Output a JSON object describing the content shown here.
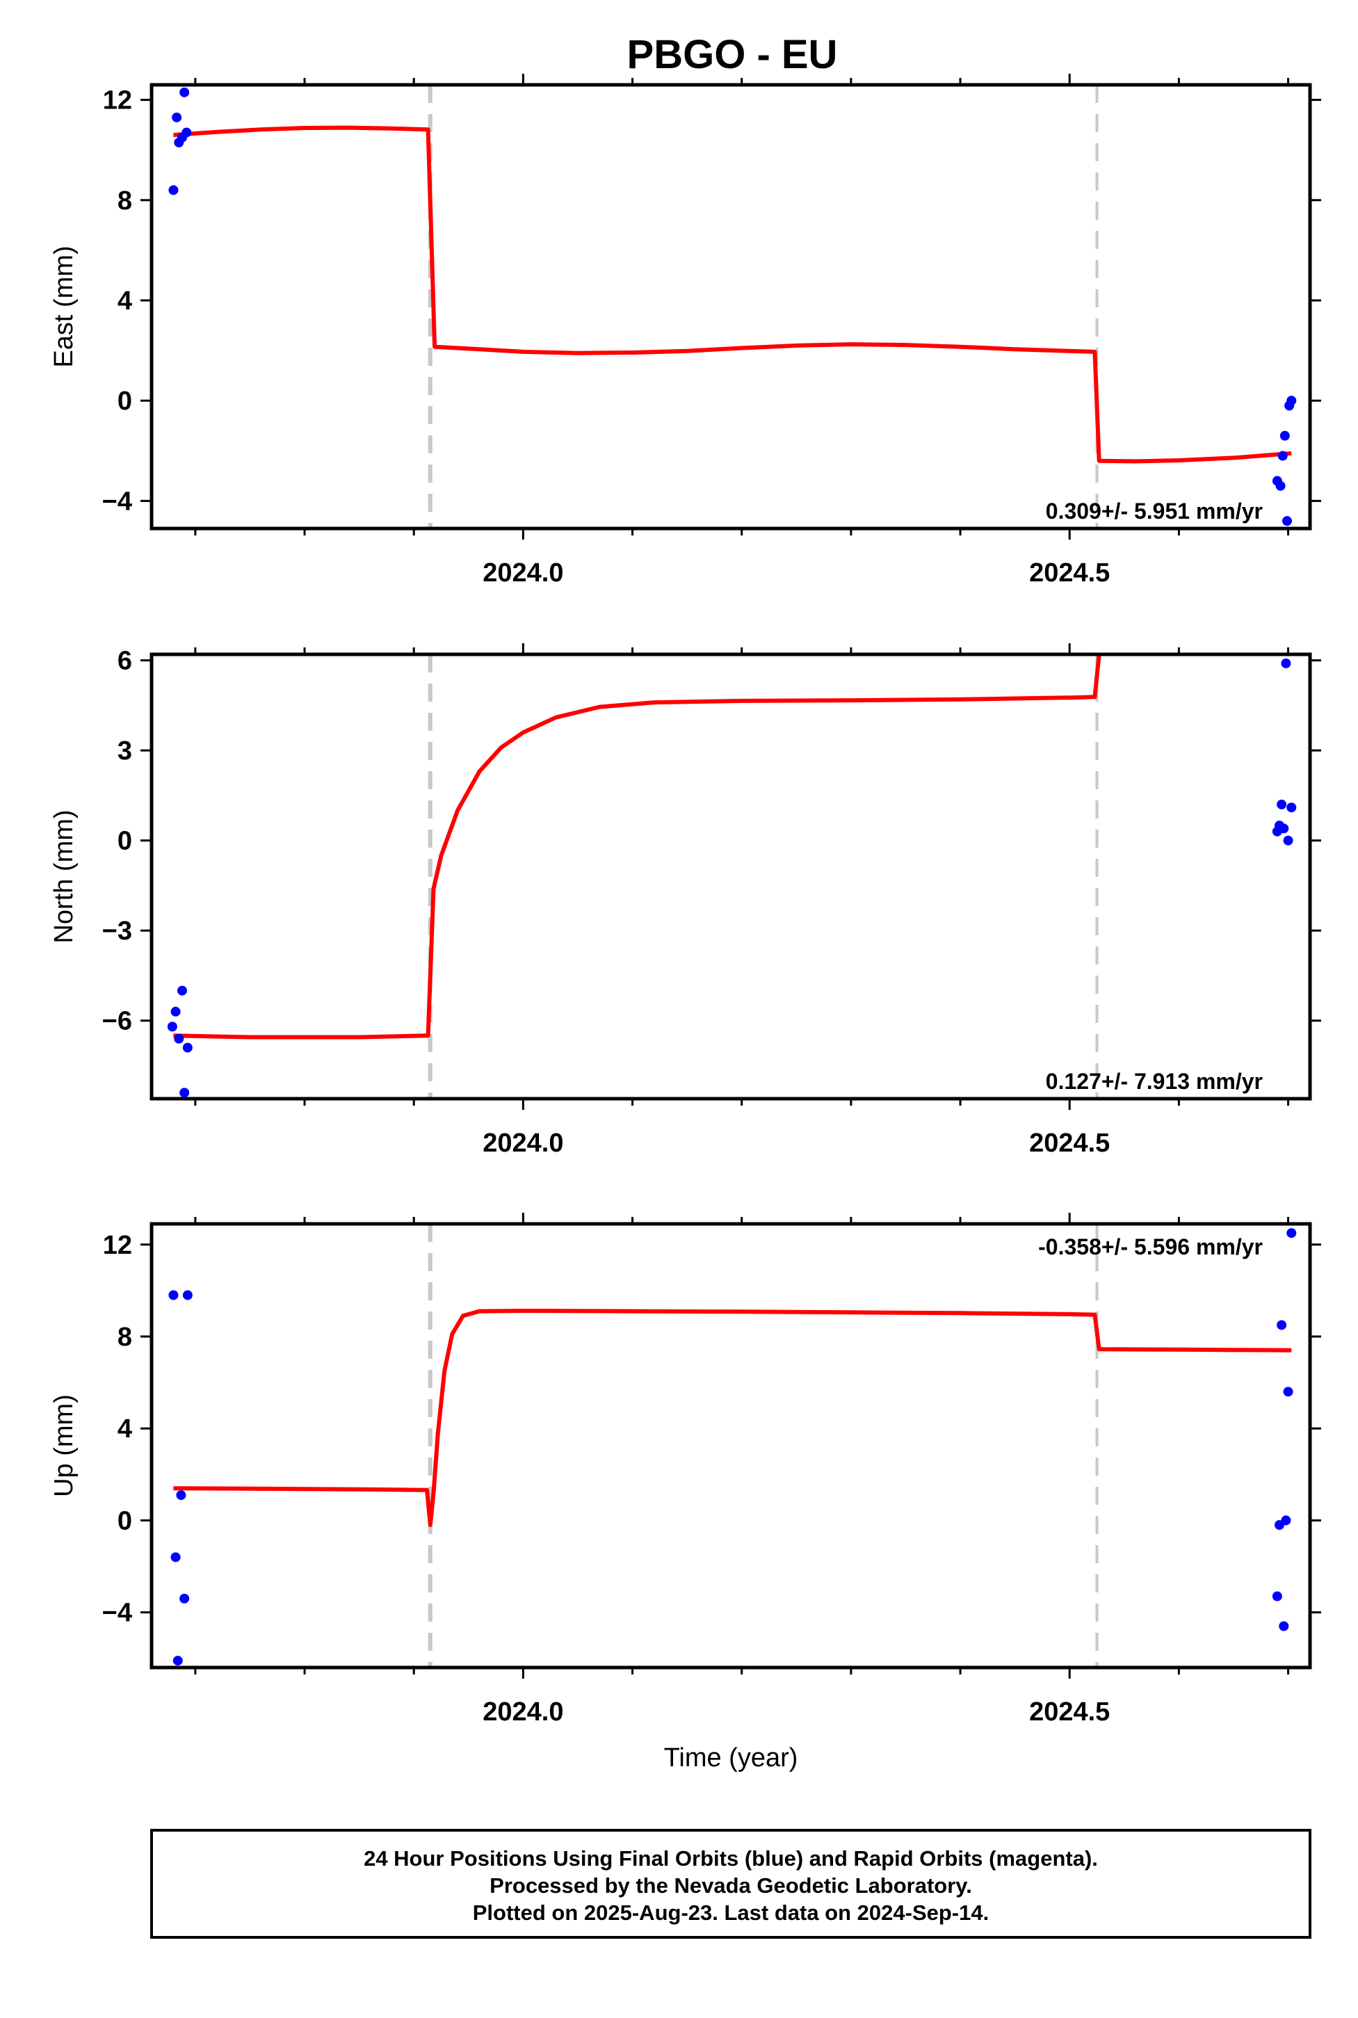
{
  "title": "PBGO - EU",
  "colors": {
    "model": "#ff0000",
    "points": "#0000ff",
    "offset_line": "#c8c8c8",
    "frame": "#000000"
  },
  "chart_data": [
    {
      "type": "scatter",
      "panel": "east",
      "ylabel": "East (mm)",
      "xlabel": "",
      "xlim": [
        2023.66,
        2024.72
      ],
      "ylim": [
        -5.1,
        12.6
      ],
      "yticks": [
        -4,
        0,
        4,
        8,
        12
      ],
      "ytick_labels": [
        "−4",
        "0",
        "4",
        "8",
        "12"
      ],
      "xticks": [
        2024.0,
        2024.5
      ],
      "xtick_labels": [
        "2024.0",
        "2024.5"
      ],
      "xminor": [
        2023.7,
        2023.8,
        2023.9,
        2024.1,
        2024.2,
        2024.3,
        2024.4,
        2024.6,
        2024.7
      ],
      "offsets": [
        2023.915,
        2024.525
      ],
      "rate_text": "0.309+/- 5.951 mm/yr",
      "rate_position": "bottom-right",
      "points": [
        [
          2023.68,
          8.4
        ],
        [
          2023.683,
          11.3
        ],
        [
          2023.685,
          10.3
        ],
        [
          2023.688,
          10.5
        ],
        [
          2023.69,
          12.3
        ],
        [
          2023.692,
          10.7
        ],
        [
          2024.69,
          -3.2
        ],
        [
          2024.693,
          -3.4
        ],
        [
          2024.695,
          -2.2
        ],
        [
          2024.697,
          -1.4
        ],
        [
          2024.699,
          -4.8
        ],
        [
          2024.701,
          -0.2
        ],
        [
          2024.703,
          0
        ]
      ],
      "model": [
        [
          2023.68,
          10.6
        ],
        [
          2023.72,
          10.72
        ],
        [
          2023.76,
          10.82
        ],
        [
          2023.8,
          10.88
        ],
        [
          2023.84,
          10.89
        ],
        [
          2023.88,
          10.86
        ],
        [
          2023.913,
          10.82
        ],
        [
          2023.919,
          2.15
        ],
        [
          2023.96,
          2.05
        ],
        [
          2024.0,
          1.95
        ],
        [
          2024.05,
          1.9
        ],
        [
          2024.1,
          1.92
        ],
        [
          2024.15,
          1.98
        ],
        [
          2024.2,
          2.1
        ],
        [
          2024.25,
          2.2
        ],
        [
          2024.3,
          2.25
        ],
        [
          2024.35,
          2.22
        ],
        [
          2024.4,
          2.15
        ],
        [
          2024.45,
          2.05
        ],
        [
          2024.523,
          1.95
        ],
        [
          2024.527,
          -2.4
        ],
        [
          2024.56,
          -2.42
        ],
        [
          2024.6,
          -2.38
        ],
        [
          2024.65,
          -2.28
        ],
        [
          2024.703,
          -2.1
        ]
      ]
    },
    {
      "type": "scatter",
      "panel": "north",
      "ylabel": "North (mm)",
      "xlabel": "",
      "xlim": [
        2023.66,
        2024.72
      ],
      "ylim": [
        -8.6,
        6.2
      ],
      "yticks": [
        -6,
        -3,
        0,
        3,
        6
      ],
      "ytick_labels": [
        "−6",
        "−3",
        "0",
        "3",
        "6"
      ],
      "xticks": [
        2024.0,
        2024.5
      ],
      "xtick_labels": [
        "2024.0",
        "2024.5"
      ],
      "xminor": [
        2023.7,
        2023.8,
        2023.9,
        2024.1,
        2024.2,
        2024.3,
        2024.4,
        2024.6,
        2024.7
      ],
      "offsets": [
        2023.915,
        2024.525
      ],
      "rate_text": "0.127+/- 7.913 mm/yr",
      "rate_position": "bottom-right",
      "points": [
        [
          2023.679,
          -6.2
        ],
        [
          2023.682,
          -5.7
        ],
        [
          2023.685,
          -6.6
        ],
        [
          2023.688,
          -5.0
        ],
        [
          2023.69,
          -8.4
        ],
        [
          2023.693,
          -6.9
        ],
        [
          2024.69,
          0.3
        ],
        [
          2024.692,
          0.5
        ],
        [
          2024.694,
          1.2
        ],
        [
          2024.696,
          0.4
        ],
        [
          2024.698,
          5.9
        ],
        [
          2024.7,
          0.0
        ],
        [
          2024.703,
          1.1
        ]
      ],
      "model": [
        [
          2023.68,
          -6.5
        ],
        [
          2023.75,
          -6.55
        ],
        [
          2023.85,
          -6.55
        ],
        [
          2023.913,
          -6.5
        ],
        [
          2023.918,
          -1.6
        ],
        [
          2023.925,
          -0.5
        ],
        [
          2023.94,
          1.0
        ],
        [
          2023.96,
          2.3
        ],
        [
          2023.98,
          3.1
        ],
        [
          2024.0,
          3.6
        ],
        [
          2024.03,
          4.1
        ],
        [
          2024.07,
          4.45
        ],
        [
          2024.12,
          4.6
        ],
        [
          2024.2,
          4.65
        ],
        [
          2024.3,
          4.67
        ],
        [
          2024.4,
          4.7
        ],
        [
          2024.5,
          4.76
        ],
        [
          2024.523,
          4.78
        ],
        [
          2024.527,
          6.2
        ]
      ]
    },
    {
      "type": "scatter",
      "panel": "up",
      "ylabel": "Up (mm)",
      "xlabel": "Time (year)",
      "xlim": [
        2023.66,
        2024.72
      ],
      "ylim": [
        -6.4,
        12.9
      ],
      "yticks": [
        -4,
        0,
        4,
        8,
        12
      ],
      "ytick_labels": [
        "−4",
        "0",
        "4",
        "8",
        "12"
      ],
      "xticks": [
        2024.0,
        2024.5
      ],
      "xtick_labels": [
        "2024.0",
        "2024.5"
      ],
      "xminor": [
        2023.7,
        2023.8,
        2023.9,
        2024.1,
        2024.2,
        2024.3,
        2024.4,
        2024.6,
        2024.7
      ],
      "offsets": [
        2023.915,
        2024.525
      ],
      "rate_text": "-0.358+/- 5.596 mm/yr",
      "rate_position": "top-right",
      "points": [
        [
          2023.68,
          9.8
        ],
        [
          2023.682,
          -1.6
        ],
        [
          2023.684,
          -6.1
        ],
        [
          2023.687,
          1.1
        ],
        [
          2023.69,
          -3.4
        ],
        [
          2023.693,
          9.8
        ],
        [
          2024.69,
          -3.3
        ],
        [
          2024.692,
          -0.2
        ],
        [
          2024.694,
          8.5
        ],
        [
          2024.696,
          -4.6
        ],
        [
          2024.698,
          0.0
        ],
        [
          2024.7,
          5.6
        ],
        [
          2024.703,
          12.5
        ]
      ],
      "model": [
        [
          2023.68,
          1.4
        ],
        [
          2023.75,
          1.38
        ],
        [
          2023.85,
          1.35
        ],
        [
          2023.912,
          1.32
        ],
        [
          2023.915,
          -0.2
        ],
        [
          2023.918,
          1.2
        ],
        [
          2023.922,
          3.8
        ],
        [
          2023.928,
          6.5
        ],
        [
          2023.935,
          8.1
        ],
        [
          2023.945,
          8.9
        ],
        [
          2023.96,
          9.1
        ],
        [
          2024.0,
          9.12
        ],
        [
          2024.1,
          9.1
        ],
        [
          2024.2,
          9.08
        ],
        [
          2024.3,
          9.05
        ],
        [
          2024.4,
          9.02
        ],
        [
          2024.5,
          8.97
        ],
        [
          2024.523,
          8.95
        ],
        [
          2024.527,
          7.45
        ],
        [
          2024.6,
          7.43
        ],
        [
          2024.703,
          7.4
        ]
      ]
    }
  ],
  "footer": {
    "line1": "24 Hour Positions Using Final Orbits (blue) and Rapid Orbits (magenta).",
    "line2": "Processed by the Nevada Geodetic Laboratory.",
    "line3": "Plotted on 2025-Aug-23. Last data on 2024-Sep-14."
  }
}
